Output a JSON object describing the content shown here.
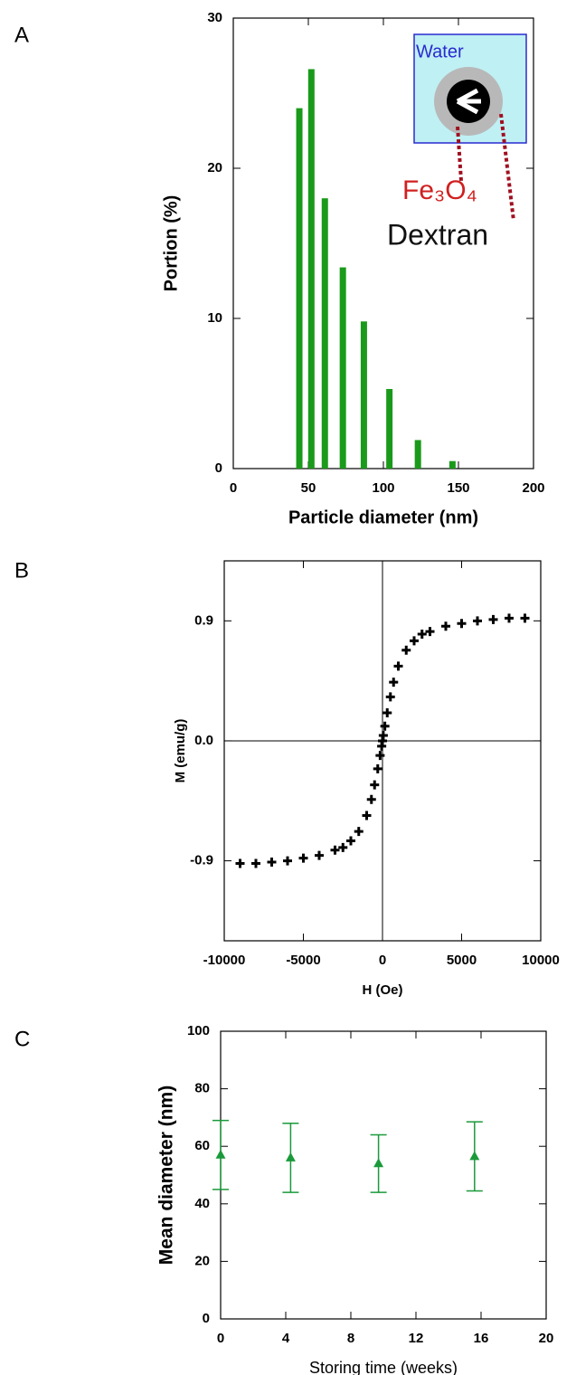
{
  "chart_data": [
    {
      "type": "bar",
      "panel_label": "A",
      "xlabel": "Particle diameter (nm)",
      "ylabel": "Portion (%)",
      "x": [
        44,
        52,
        61,
        73,
        87,
        104,
        123,
        146
      ],
      "values": [
        24,
        26.6,
        18,
        13.4,
        9.8,
        5.3,
        1.9,
        0.5
      ],
      "color": "#1a9a1a",
      "xlim": [
        0,
        200
      ],
      "ylim": [
        0,
        30
      ],
      "xticks": [
        0,
        50,
        100,
        150,
        200
      ],
      "yticks": [
        0,
        10,
        20,
        30
      ],
      "annotations": [
        "Water",
        "Fe₃O₄",
        "Dextran"
      ]
    },
    {
      "type": "scatter",
      "panel_label": "B",
      "xlabel": "H (Oe)",
      "ylabel": "M (emu/g)",
      "marker": "plus",
      "x": [
        -9000,
        -8000,
        -7000,
        -6000,
        -5000,
        -4000,
        -3000,
        -2500,
        -2000,
        -1500,
        -1000,
        -700,
        -500,
        -300,
        -150,
        -50,
        0,
        50,
        150,
        300,
        500,
        700,
        1000,
        1500,
        2000,
        2500,
        3000,
        4000,
        5000,
        6000,
        7000,
        8000,
        9000
      ],
      "values": [
        -0.92,
        -0.92,
        -0.91,
        -0.9,
        -0.88,
        -0.86,
        -0.82,
        -0.8,
        -0.75,
        -0.68,
        -0.56,
        -0.44,
        -0.33,
        -0.21,
        -0.11,
        -0.04,
        0,
        0.04,
        0.11,
        0.21,
        0.33,
        0.44,
        0.56,
        0.68,
        0.75,
        0.8,
        0.82,
        0.86,
        0.88,
        0.9,
        0.91,
        0.92,
        0.92
      ],
      "color": "#000000",
      "xlim": [
        -10000,
        10000
      ],
      "ylim": [
        -1.5,
        1.35
      ],
      "xticks": [
        -10000,
        -5000,
        0,
        5000,
        10000
      ],
      "yticks": [
        -0.9,
        {
          "value": 0,
          "label": "0.0"
        },
        0.9
      ]
    },
    {
      "type": "scatter",
      "panel_label": "C",
      "xlabel": "Storing time (weeks)",
      "ylabel": "Mean diameter (nm)",
      "marker": "triangle",
      "x": [
        0,
        4.3,
        9.7,
        15.6
      ],
      "values": [
        57,
        56,
        54,
        56.5
      ],
      "yerr": [
        12,
        12,
        10,
        12
      ],
      "color": "#1a9a3a",
      "xlim": [
        0,
        20
      ],
      "ylim": [
        0,
        100
      ],
      "xticks": [
        0,
        4,
        8,
        12,
        16,
        20
      ],
      "yticks": [
        0,
        20,
        40,
        60,
        80,
        100
      ]
    }
  ]
}
